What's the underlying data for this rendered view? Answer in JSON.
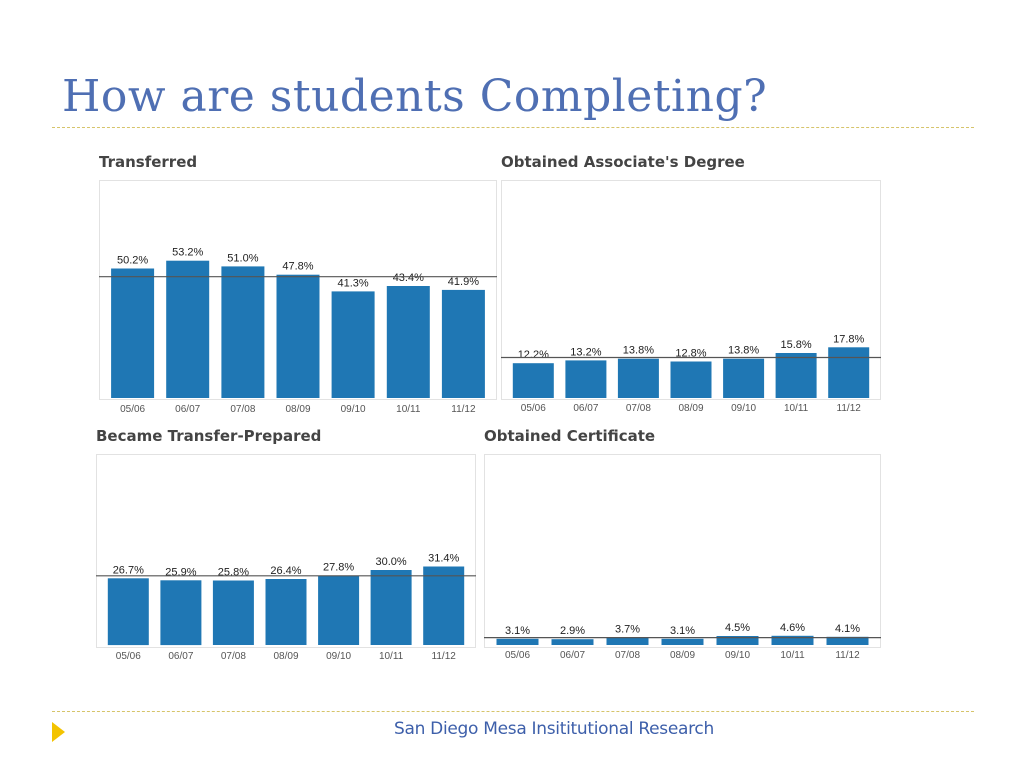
{
  "slide": {
    "title": "How are students Completing?",
    "footer": "San Diego Mesa Insititutional Research"
  },
  "colors": {
    "bar": "#1f77b4",
    "title": "#4f6fb3",
    "accent": "#f3c300"
  },
  "icons": {
    "footer_bullet": "triangle-right-icon"
  },
  "chart_data": [
    {
      "id": "transferred",
      "type": "bar",
      "title": "Transferred",
      "categories": [
        "05/06",
        "06/07",
        "07/08",
        "08/09",
        "09/10",
        "10/11",
        "11/12"
      ],
      "values": [
        50.2,
        53.2,
        51.0,
        47.8,
        41.3,
        43.4,
        41.9
      ],
      "labels": [
        "50.2%",
        "53.2%",
        "51.0%",
        "47.8%",
        "41.3%",
        "43.4%",
        "41.9%"
      ],
      "reference_line": 47.0,
      "ylim": [
        0,
        60
      ]
    },
    {
      "id": "associates",
      "type": "bar",
      "title": "Obtained Associate's Degree",
      "categories": [
        "05/06",
        "06/07",
        "07/08",
        "08/09",
        "09/10",
        "10/11",
        "11/12"
      ],
      "values": [
        12.2,
        13.2,
        13.8,
        12.8,
        13.8,
        15.8,
        17.8
      ],
      "labels": [
        "12.2%",
        "13.2%",
        "13.8%",
        "12.8%",
        "13.8%",
        "15.8%",
        "17.8%"
      ],
      "reference_line": 14.2,
      "ylim": [
        0,
        60
      ]
    },
    {
      "id": "transfer-prepared",
      "type": "bar",
      "title": "Became Transfer-Prepared",
      "categories": [
        "05/06",
        "06/07",
        "07/08",
        "08/09",
        "09/10",
        "10/11",
        "11/12"
      ],
      "values": [
        26.7,
        25.9,
        25.8,
        26.4,
        27.8,
        30.0,
        31.4
      ],
      "labels": [
        "26.7%",
        "25.9%",
        "25.8%",
        "26.4%",
        "27.8%",
        "30.0%",
        "31.4%"
      ],
      "reference_line": 27.7,
      "ylim": [
        0,
        60
      ]
    },
    {
      "id": "certificate",
      "type": "bar",
      "title": "Obtained Certificate",
      "categories": [
        "05/06",
        "06/07",
        "07/08",
        "08/09",
        "09/10",
        "10/11",
        "11/12"
      ],
      "values": [
        3.1,
        2.9,
        3.7,
        3.1,
        4.5,
        4.6,
        4.1
      ],
      "labels": [
        "3.1%",
        "2.9%",
        "3.7%",
        "3.1%",
        "4.5%",
        "4.6%",
        "4.1%"
      ],
      "reference_line": 3.7,
      "ylim": [
        0,
        60
      ]
    }
  ]
}
